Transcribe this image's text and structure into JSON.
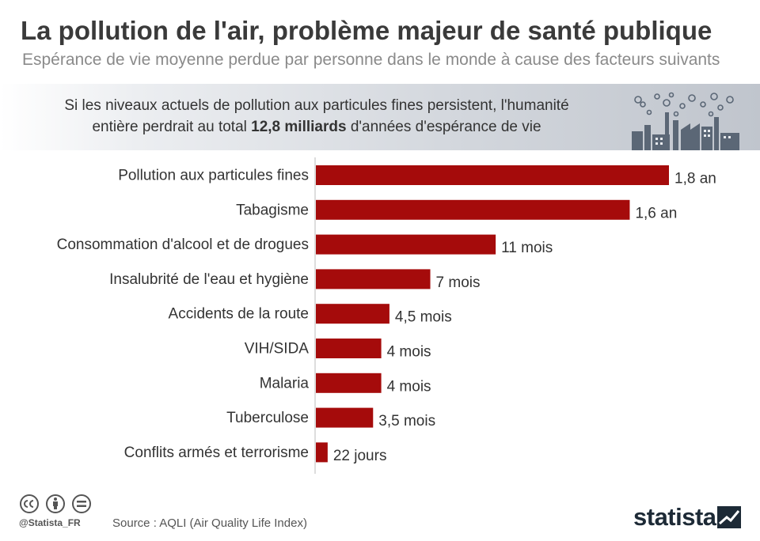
{
  "header": {
    "title": "La pollution de l'air, problème majeur de santé publique",
    "subtitle": "Espérance de vie moyenne perdue par personne dans le monde à cause des facteurs suivants"
  },
  "banner": {
    "line1": "Si les niveaux actuels de pollution aux particules fines persistent, l'humanité",
    "line2_before": "entière perdrait au total ",
    "line2_bold": "12,8 milliards",
    "line2_after": " d'années d'espérance de vie"
  },
  "chart_data": {
    "type": "bar",
    "orientation": "horizontal",
    "categories": [
      "Pollution aux particules fines",
      "Tabagisme",
      "Consommation d'alcool et de drogues",
      "Insalubrité de l'eau et hygiène",
      "Accidents de la route",
      "VIH/SIDA",
      "Malaria",
      "Tuberculose",
      "Conflits armés et terrorisme"
    ],
    "values_months": [
      21.6,
      19.2,
      11,
      7,
      4.5,
      4,
      4,
      3.5,
      0.72
    ],
    "data_labels": [
      "1,8 an",
      "1,6 an",
      "11 mois",
      "7 mois",
      "4,5 mois",
      "4 mois",
      "4 mois",
      "3,5 mois",
      "22 jours"
    ],
    "bar_color": "#a50b0b",
    "xlim": [
      0,
      21.6
    ],
    "grid": false,
    "legend": "none"
  },
  "footer": {
    "handle": "@Statista_FR",
    "source": "Source : AQLI (Air Quality Life Index)",
    "logo": "statista",
    "license_icons": [
      "cc-icon",
      "by-icon",
      "nd-icon"
    ]
  }
}
